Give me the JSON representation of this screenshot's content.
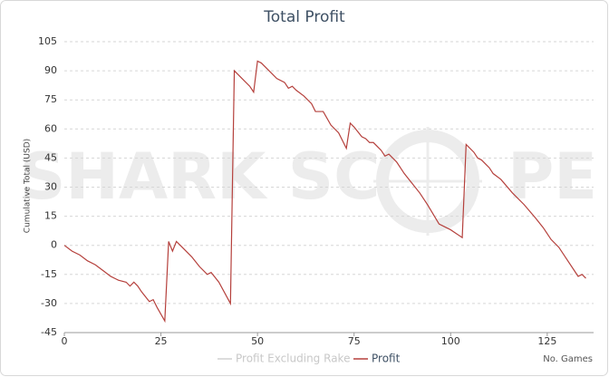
{
  "chart_data": {
    "type": "line",
    "title": "Total Profit",
    "watermark": [
      "SHARK SC",
      "PE"
    ],
    "y_label": "Cumulative Total (USD)",
    "x_label": "No. Games",
    "xlim": [
      0,
      137
    ],
    "xticks": [
      0,
      25,
      50,
      75,
      100,
      125
    ],
    "ylim": [
      -45,
      105
    ],
    "yticks": [
      -45,
      -30,
      -15,
      0,
      15,
      30,
      45,
      60,
      75,
      90,
      105
    ],
    "grid": true,
    "x": [
      0,
      2,
      4,
      6,
      8,
      10,
      12,
      14,
      16,
      17,
      18,
      19,
      20,
      22,
      23,
      24,
      26,
      27,
      28,
      29,
      31,
      33,
      35,
      37,
      38,
      40,
      43,
      44,
      46,
      48,
      49,
      50,
      51,
      53,
      55,
      57,
      58,
      59,
      60,
      62,
      64,
      65,
      67,
      69,
      71,
      73,
      74,
      75,
      77,
      78,
      79,
      80,
      82,
      83,
      84,
      86,
      88,
      90,
      92,
      94,
      97,
      100,
      103,
      104,
      106,
      107,
      108,
      110,
      111,
      113,
      116,
      119,
      122,
      124,
      126,
      128,
      130,
      133,
      134,
      135
    ],
    "series": [
      {
        "name": "Profit Excluding Rake",
        "color": "#d0d0d0"
      },
      {
        "name": "Profit",
        "color": "#b5403c",
        "values": [
          0,
          -3,
          -5,
          -8,
          -10,
          -13,
          -16,
          -18,
          -19,
          -21,
          -19,
          -21,
          -24,
          -29,
          -28,
          -32,
          -39,
          2,
          -3,
          2,
          -2,
          -6,
          -11,
          -15,
          -14,
          -19,
          -30,
          90,
          86,
          82,
          79,
          95,
          94,
          90,
          86,
          84,
          81,
          82,
          80,
          77,
          73,
          69,
          69,
          62,
          58,
          50,
          63,
          61,
          56,
          55,
          53,
          53,
          49,
          46,
          47,
          43,
          37,
          32,
          27,
          21,
          11,
          8,
          4,
          52,
          48,
          45,
          44,
          40,
          37,
          34,
          27,
          21,
          14,
          9,
          3,
          -1,
          -7,
          -16,
          -15,
          -17
        ]
      }
    ]
  }
}
